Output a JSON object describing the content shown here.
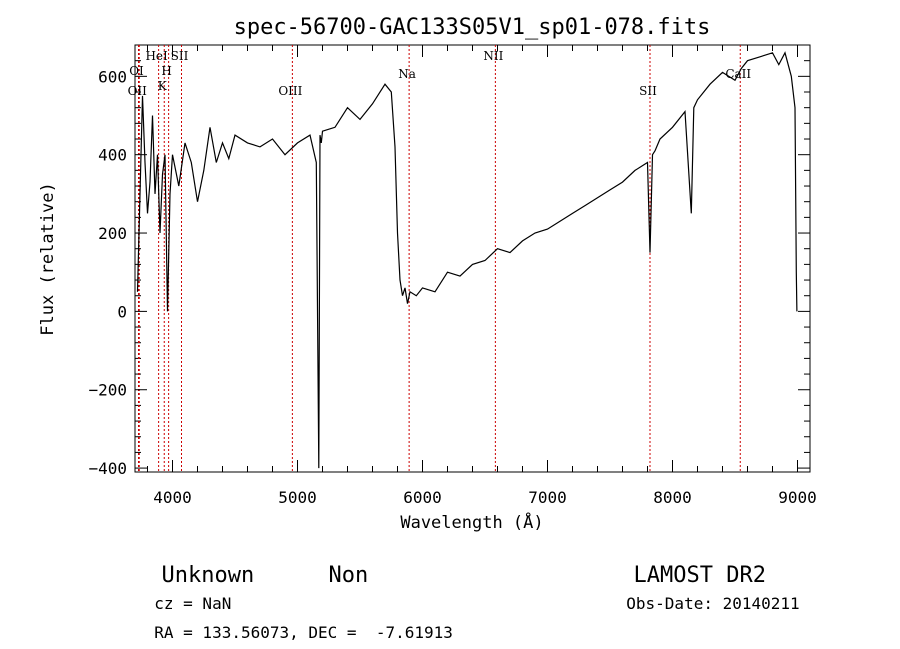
{
  "chart_data": {
    "type": "line",
    "title": "spec-56700-GAC133S05V1_sp01-078.fits",
    "xlabel": "Wavelength (Å)",
    "ylabel": "Flux (relative)",
    "xlim": [
      3700,
      9100
    ],
    "ylim": [
      -410,
      680
    ],
    "x_ticks": [
      4000,
      5000,
      6000,
      7000,
      8000,
      9000
    ],
    "x_tick_labels": [
      "4000",
      "5000",
      "6000",
      "7000",
      "8000",
      "9000"
    ],
    "y_ticks": [
      -400,
      -200,
      0,
      200,
      400,
      600
    ],
    "y_tick_labels": [
      "−400",
      "−200",
      "0",
      "200",
      "400",
      "600"
    ],
    "grid": false,
    "line_color": "#000000",
    "marker_color": "#cc0000",
    "series": [
      {
        "x": [
          3720,
          3740,
          3760,
          3780,
          3800,
          3820,
          3840,
          3860,
          3880,
          3900,
          3920,
          3940,
          3960,
          3980,
          4000,
          4050,
          4100,
          4150,
          4200,
          4250,
          4300,
          4350,
          4400,
          4450,
          4500,
          4600,
          4700,
          4800,
          4900,
          5000,
          5100,
          5150,
          5170,
          5180,
          5190,
          5200,
          5300,
          5400,
          5500,
          5600,
          5700,
          5750,
          5780,
          5800,
          5820,
          5840,
          5860,
          5880,
          5900,
          5950,
          6000,
          6100,
          6200,
          6300,
          6400,
          6500,
          6600,
          6700,
          6800,
          6900,
          7000,
          7100,
          7200,
          7300,
          7400,
          7500,
          7600,
          7700,
          7800,
          7820,
          7840,
          7860,
          7900,
          8000,
          8100,
          8150,
          8170,
          8200,
          8300,
          8400,
          8500,
          8550,
          8600,
          8700,
          8800,
          8850,
          8900,
          8950,
          8980,
          8990,
          8995
        ],
        "y": [
          50,
          300,
          550,
          380,
          250,
          330,
          500,
          300,
          400,
          200,
          350,
          400,
          0,
          300,
          400,
          320,
          430,
          380,
          280,
          360,
          470,
          380,
          430,
          390,
          450,
          430,
          420,
          440,
          400,
          430,
          450,
          380,
          -400,
          450,
          430,
          460,
          470,
          520,
          490,
          530,
          580,
          560,
          420,
          200,
          80,
          40,
          60,
          20,
          50,
          40,
          60,
          50,
          100,
          90,
          120,
          130,
          160,
          150,
          180,
          200,
          210,
          230,
          250,
          270,
          290,
          310,
          330,
          360,
          380,
          150,
          400,
          410,
          440,
          470,
          510,
          250,
          520,
          540,
          580,
          610,
          590,
          620,
          640,
          650,
          660,
          630,
          660,
          600,
          520,
          100,
          0
        ]
      }
    ],
    "lines": [
      {
        "x": 3728,
        "label": "OI"
      },
      {
        "x": 3734,
        "label": "OII"
      },
      {
        "x": 3889,
        "label": "HeI"
      },
      {
        "x": 3934,
        "label": "K"
      },
      {
        "x": 3969,
        "label": "H"
      },
      {
        "x": 4072,
        "label": "SII"
      },
      {
        "x": 4959,
        "label": "OIII"
      },
      {
        "x": 5893,
        "label": "Na"
      },
      {
        "x": 6583,
        "label": "NII"
      },
      {
        "x": 7820,
        "label": "SII"
      },
      {
        "x": 8542,
        "label": "CaII"
      }
    ]
  },
  "footer": {
    "object_class": "Unknown",
    "object_subclass": "Non",
    "survey": "LAMOST DR2",
    "cz": "cz = NaN",
    "obs_date": "Obs-Date: 20140211",
    "coords": "RA = 133.56073, DEC =  -7.61913"
  }
}
